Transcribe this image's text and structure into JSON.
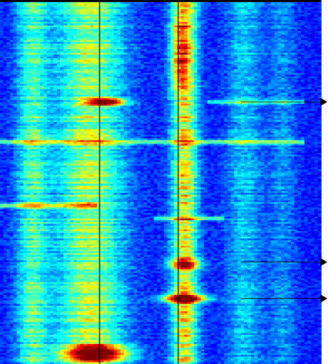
{
  "chart_data": {
    "type": "heatmap",
    "title": "",
    "xlabel": "",
    "ylabel": "",
    "axes_visible": false,
    "grid": false,
    "legend": "none",
    "colormap": "jet",
    "colormap_stops": [
      "#00007f",
      "#0000ff",
      "#0080ff",
      "#00ffff",
      "#80ff80",
      "#ffff00",
      "#ff8000",
      "#ff0000",
      "#7f0000"
    ],
    "x_range": [
      0,
      1
    ],
    "y_range": [
      0,
      1
    ],
    "value_range": [
      0,
      1
    ],
    "background_level": 0.15,
    "columns": [
      {
        "name": "col-a",
        "center": 0.1,
        "width": 0.035,
        "intensity": 0.3
      },
      {
        "name": "col-b",
        "center": 0.28,
        "width": 0.075,
        "intensity": 0.4
      },
      {
        "name": "col-c",
        "center": 0.575,
        "width": 0.028,
        "intensity": 0.5
      },
      {
        "name": "col-d",
        "center": 0.76,
        "width": 0.04,
        "intensity": 0.18
      },
      {
        "name": "col-e",
        "center": 0.88,
        "width": 0.03,
        "intensity": 0.12
      }
    ],
    "hotspots": [
      {
        "x": 0.33,
        "y": 0.28,
        "sx": 0.04,
        "sy": 0.006,
        "intensity": 0.85
      },
      {
        "x": 0.575,
        "y": 0.82,
        "sx": 0.05,
        "sy": 0.008,
        "intensity": 0.8
      },
      {
        "x": 0.575,
        "y": 0.725,
        "sx": 0.035,
        "sy": 0.012,
        "intensity": 0.45
      },
      {
        "x": 0.3,
        "y": 0.97,
        "sx": 0.07,
        "sy": 0.015,
        "intensity": 0.8
      },
      {
        "x": 0.56,
        "y": 0.18,
        "sx": 0.02,
        "sy": 0.05,
        "intensity": 0.3
      },
      {
        "x": 0.56,
        "y": 0.08,
        "sx": 0.02,
        "sy": 0.03,
        "intensity": 0.25
      }
    ],
    "horizontal_bands": [
      {
        "y": 0.39,
        "x_from": 0.0,
        "x_to": 0.95,
        "intensity": 0.35
      },
      {
        "y": 0.565,
        "x_from": 0.0,
        "x_to": 0.3,
        "intensity": 0.35
      },
      {
        "y": 0.6,
        "x_from": 0.48,
        "x_to": 0.7,
        "intensity": 0.3
      },
      {
        "y": 0.28,
        "x_from": 0.65,
        "x_to": 0.95,
        "intensity": 0.25
      }
    ],
    "vertical_markers": [
      0.31,
      0.555
    ],
    "row_markers": [
      0.28,
      0.72,
      0.82
    ],
    "colors": {
      "marker_line": "#000000",
      "top_strip": "#000000"
    }
  }
}
